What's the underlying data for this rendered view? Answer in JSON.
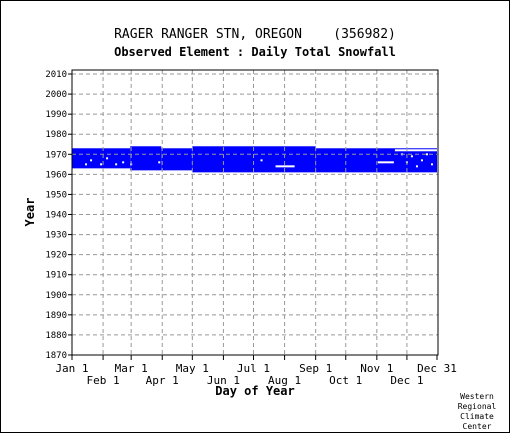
{
  "chart_data": {
    "type": "heatmap",
    "title": "RAGER RANGER STN, OREGON    (356982)",
    "subtitle": "Observed Element : Daily Total Snowfall",
    "xlabel": "Day of Year",
    "ylabel": "Year",
    "ylim": [
      1870,
      2012
    ],
    "y_ticks": [
      1870,
      1880,
      1890,
      1900,
      1910,
      1920,
      1930,
      1940,
      1950,
      1960,
      1970,
      1980,
      1990,
      2000,
      2010
    ],
    "xlim": [
      1,
      366
    ],
    "x_ticks_top": [
      {
        "label": "Jan 1",
        "day": 1
      },
      {
        "label": "Mar 1",
        "day": 60
      },
      {
        "label": "May 1",
        "day": 121
      },
      {
        "label": "Jul 1",
        "day": 182
      },
      {
        "label": "Sep 1",
        "day": 244
      },
      {
        "label": "Nov 1",
        "day": 305
      },
      {
        "label": "Dec 31",
        "day": 365
      }
    ],
    "x_ticks_bottom": [
      {
        "label": "Feb 1",
        "day": 32
      },
      {
        "label": "Apr 1",
        "day": 91
      },
      {
        "label": "Jun 1",
        "day": 152
      },
      {
        "label": "Aug 1",
        "day": 213
      },
      {
        "label": "Oct 1",
        "day": 274
      },
      {
        "label": "Dec 1",
        "day": 335
      }
    ],
    "grid": true,
    "data_color": "#0000ff",
    "data_coverage": [
      {
        "day_start": 1,
        "day_end": 59,
        "year_start": 1963,
        "year_end": 1973
      },
      {
        "day_start": 59,
        "day_end": 90,
        "year_start": 1962,
        "year_end": 1974
      },
      {
        "day_start": 90,
        "day_end": 121,
        "year_start": 1962,
        "year_end": 1973
      },
      {
        "day_start": 121,
        "day_end": 244,
        "year_start": 1961,
        "year_end": 1974
      },
      {
        "day_start": 244,
        "day_end": 365,
        "year_start": 1961,
        "year_end": 1973
      }
    ],
    "missing_marks": [
      {
        "day": 15,
        "year": 1965
      },
      {
        "day": 20,
        "year": 1967
      },
      {
        "day": 30,
        "year": 1965
      },
      {
        "day": 36,
        "year": 1968
      },
      {
        "day": 45,
        "year": 1965
      },
      {
        "day": 52,
        "year": 1966
      },
      {
        "day": 60,
        "year": 1965
      },
      {
        "day": 88,
        "year": 1966
      },
      {
        "day": 190,
        "year": 1967
      },
      {
        "day": 330,
        "year": 1970
      },
      {
        "day": 335,
        "year": 1966
      },
      {
        "day": 340,
        "year": 1969
      },
      {
        "day": 345,
        "year": 1964
      },
      {
        "day": 350,
        "year": 1967
      },
      {
        "day": 355,
        "year": 1970
      },
      {
        "day": 360,
        "year": 1965
      }
    ],
    "gaps": [
      {
        "day_start": 204,
        "day_end": 223,
        "year": 1964
      },
      {
        "day_start": 306,
        "day_end": 322,
        "year": 1966
      },
      {
        "day_start": 323,
        "day_end": 365,
        "year": 1972
      }
    ]
  },
  "credit": [
    "Western",
    "Regional",
    "Climate",
    "Center"
  ]
}
